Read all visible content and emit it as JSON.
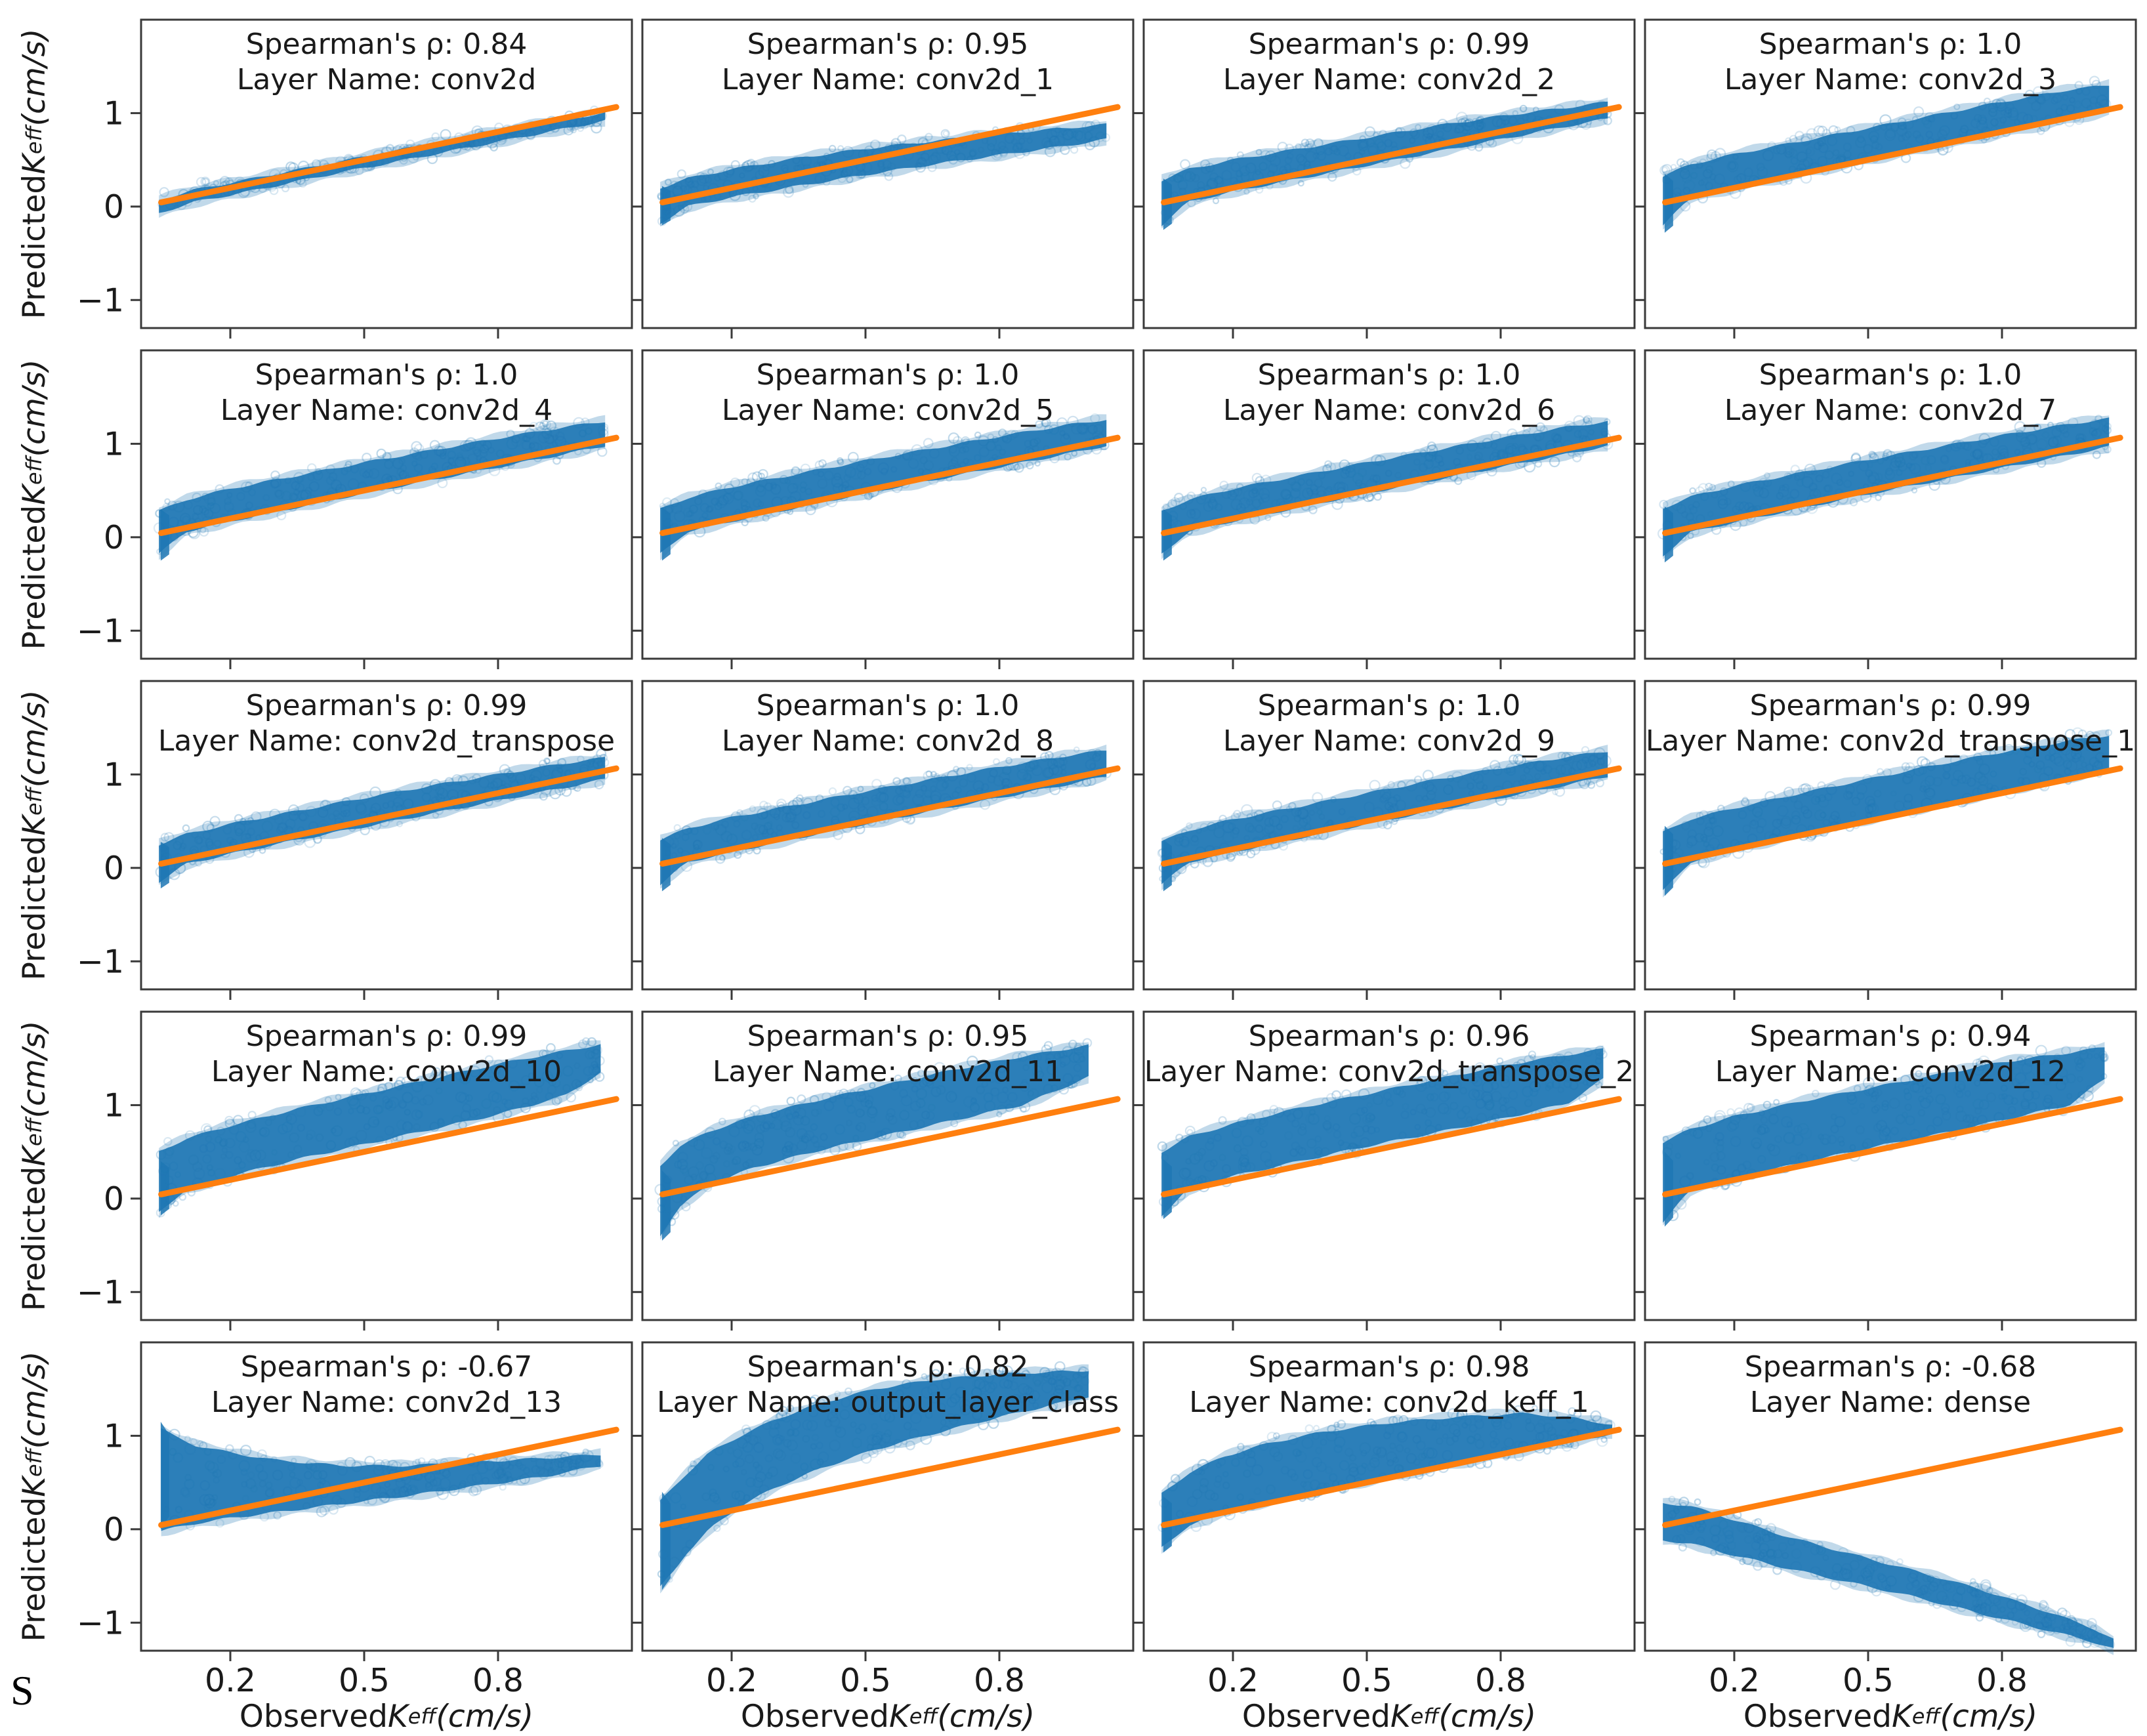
{
  "figure": {
    "caption_letter": "S",
    "colors": {
      "scatter": "#1f77b4",
      "line": "#ff7f0e",
      "axis": "#3a3a3a",
      "text": "#1a1a1a"
    },
    "title_template": {
      "rho_prefix": "Spearman's ρ: ",
      "layer_prefix": "Layer Name: "
    },
    "axes": {
      "xlabel": {
        "prefix": "Observed ",
        "symbol": "K",
        "subscript": "eff",
        "unit": "(cm/s)"
      },
      "ylabel": {
        "prefix": "Predicted ",
        "symbol": "K",
        "subscript": "eff",
        "unit": "(cm/s)"
      },
      "x_ticks": [
        "0.2",
        "0.5",
        "0.8"
      ],
      "x_tick_values": [
        0.2,
        0.5,
        0.8
      ],
      "y_ticks": [
        "1",
        "0",
        "−1"
      ],
      "y_tick_values": [
        1,
        0,
        -1
      ],
      "x_range": [
        0.0,
        1.1
      ],
      "y_range": [
        -1.3,
        2.0
      ],
      "grid": false,
      "legend": false,
      "identity_line": {
        "x1": 0.045,
        "y1": 0.045,
        "x2": 1.065,
        "y2": 1.065
      }
    }
  },
  "chart_data": [
    {
      "type": "scatter",
      "rho": "0.84",
      "layer": "conv2d",
      "spike": null,
      "band": [
        [
          0.04,
          -0.07,
          0.07
        ],
        [
          0.12,
          0.05,
          0.18
        ],
        [
          0.25,
          0.17,
          0.3
        ],
        [
          0.4,
          0.32,
          0.44
        ],
        [
          0.55,
          0.46,
          0.58
        ],
        [
          0.7,
          0.6,
          0.72
        ],
        [
          0.85,
          0.74,
          0.85
        ],
        [
          1.0,
          0.88,
          0.97
        ],
        [
          1.04,
          0.92,
          1.0
        ]
      ]
    },
    {
      "type": "scatter",
      "rho": "0.95",
      "layer": "conv2d_1",
      "spike": [
        -0.2,
        0.22
      ],
      "band": [
        [
          0.04,
          -0.18,
          0.2
        ],
        [
          0.1,
          0.0,
          0.3
        ],
        [
          0.2,
          0.1,
          0.4
        ],
        [
          0.35,
          0.22,
          0.52
        ],
        [
          0.5,
          0.34,
          0.62
        ],
        [
          0.65,
          0.45,
          0.7
        ],
        [
          0.8,
          0.55,
          0.78
        ],
        [
          0.95,
          0.65,
          0.84
        ],
        [
          1.04,
          0.72,
          0.88
        ]
      ]
    },
    {
      "type": "scatter",
      "rho": "0.99",
      "layer": "conv2d_2",
      "spike": [
        -0.25,
        0.3
      ],
      "band": [
        [
          0.04,
          -0.2,
          0.28
        ],
        [
          0.1,
          0.05,
          0.4
        ],
        [
          0.2,
          0.16,
          0.5
        ],
        [
          0.35,
          0.3,
          0.62
        ],
        [
          0.5,
          0.44,
          0.74
        ],
        [
          0.65,
          0.58,
          0.86
        ],
        [
          0.8,
          0.72,
          0.97
        ],
        [
          0.95,
          0.86,
          1.06
        ],
        [
          1.04,
          0.94,
          1.12
        ]
      ]
    },
    {
      "type": "scatter",
      "rho": "1.0",
      "layer": "conv2d_3",
      "spike": [
        -0.28,
        0.35
      ],
      "band": [
        [
          0.04,
          -0.2,
          0.32
        ],
        [
          0.1,
          0.08,
          0.45
        ],
        [
          0.2,
          0.2,
          0.56
        ],
        [
          0.35,
          0.35,
          0.7
        ],
        [
          0.5,
          0.5,
          0.84
        ],
        [
          0.65,
          0.64,
          0.98
        ],
        [
          0.8,
          0.78,
          1.12
        ],
        [
          0.95,
          0.93,
          1.25
        ],
        [
          1.04,
          1.02,
          1.3
        ]
      ]
    },
    {
      "type": "scatter",
      "rho": "1.0",
      "layer": "conv2d_4",
      "spike": [
        -0.25,
        0.3
      ],
      "band": [
        [
          0.04,
          -0.18,
          0.28
        ],
        [
          0.1,
          0.06,
          0.4
        ],
        [
          0.2,
          0.17,
          0.52
        ],
        [
          0.35,
          0.32,
          0.66
        ],
        [
          0.5,
          0.47,
          0.8
        ],
        [
          0.65,
          0.61,
          0.93
        ],
        [
          0.8,
          0.75,
          1.06
        ],
        [
          0.95,
          0.89,
          1.18
        ],
        [
          1.04,
          0.98,
          1.24
        ]
      ]
    },
    {
      "type": "scatter",
      "rho": "1.0",
      "layer": "conv2d_5",
      "spike": [
        -0.25,
        0.32
      ],
      "band": [
        [
          0.04,
          -0.18,
          0.3
        ],
        [
          0.1,
          0.06,
          0.42
        ],
        [
          0.2,
          0.17,
          0.54
        ],
        [
          0.35,
          0.32,
          0.68
        ],
        [
          0.5,
          0.47,
          0.82
        ],
        [
          0.65,
          0.61,
          0.95
        ],
        [
          0.8,
          0.75,
          1.08
        ],
        [
          0.95,
          0.89,
          1.2
        ],
        [
          1.04,
          0.98,
          1.26
        ]
      ]
    },
    {
      "type": "scatter",
      "rho": "1.0",
      "layer": "conv2d_6",
      "spike": [
        -0.25,
        0.3
      ],
      "band": [
        [
          0.04,
          -0.18,
          0.28
        ],
        [
          0.1,
          0.06,
          0.4
        ],
        [
          0.2,
          0.17,
          0.52
        ],
        [
          0.35,
          0.32,
          0.66
        ],
        [
          0.5,
          0.47,
          0.8
        ],
        [
          0.65,
          0.61,
          0.93
        ],
        [
          0.8,
          0.75,
          1.06
        ],
        [
          0.95,
          0.89,
          1.18
        ],
        [
          1.04,
          0.98,
          1.24
        ]
      ]
    },
    {
      "type": "scatter",
      "rho": "1.0",
      "layer": "conv2d_7",
      "spike": [
        -0.27,
        0.33
      ],
      "band": [
        [
          0.04,
          -0.2,
          0.31
        ],
        [
          0.1,
          0.05,
          0.43
        ],
        [
          0.2,
          0.16,
          0.55
        ],
        [
          0.35,
          0.31,
          0.69
        ],
        [
          0.5,
          0.46,
          0.83
        ],
        [
          0.65,
          0.6,
          0.96
        ],
        [
          0.8,
          0.74,
          1.09
        ],
        [
          0.95,
          0.88,
          1.21
        ],
        [
          1.04,
          0.97,
          1.27
        ]
      ]
    },
    {
      "type": "scatter",
      "rho": "0.99",
      "layer": "conv2d_transpose",
      "spike": [
        -0.22,
        0.28
      ],
      "band": [
        [
          0.04,
          -0.15,
          0.25
        ],
        [
          0.1,
          0.04,
          0.36
        ],
        [
          0.2,
          0.15,
          0.47
        ],
        [
          0.35,
          0.3,
          0.61
        ],
        [
          0.5,
          0.44,
          0.75
        ],
        [
          0.65,
          0.58,
          0.88
        ],
        [
          0.8,
          0.72,
          1.0
        ],
        [
          0.95,
          0.86,
          1.12
        ],
        [
          1.04,
          0.95,
          1.18
        ]
      ]
    },
    {
      "type": "scatter",
      "rho": "1.0",
      "layer": "conv2d_8",
      "spike": [
        -0.25,
        0.32
      ],
      "band": [
        [
          0.04,
          -0.18,
          0.3
        ],
        [
          0.1,
          0.06,
          0.42
        ],
        [
          0.2,
          0.17,
          0.54
        ],
        [
          0.35,
          0.32,
          0.68
        ],
        [
          0.5,
          0.47,
          0.82
        ],
        [
          0.65,
          0.61,
          0.95
        ],
        [
          0.8,
          0.75,
          1.08
        ],
        [
          0.95,
          0.89,
          1.2
        ],
        [
          1.04,
          0.98,
          1.26
        ]
      ]
    },
    {
      "type": "scatter",
      "rho": "1.0",
      "layer": "conv2d_9",
      "spike": [
        -0.25,
        0.3
      ],
      "band": [
        [
          0.04,
          -0.18,
          0.28
        ],
        [
          0.1,
          0.06,
          0.4
        ],
        [
          0.2,
          0.17,
          0.52
        ],
        [
          0.35,
          0.32,
          0.66
        ],
        [
          0.5,
          0.47,
          0.8
        ],
        [
          0.65,
          0.61,
          0.94
        ],
        [
          0.8,
          0.75,
          1.07
        ],
        [
          0.95,
          0.89,
          1.19
        ],
        [
          1.04,
          0.98,
          1.25
        ]
      ]
    },
    {
      "type": "scatter",
      "rho": "0.99",
      "layer": "conv2d_transpose_1",
      "spike": [
        -0.3,
        0.45
      ],
      "band": [
        [
          0.04,
          -0.25,
          0.38
        ],
        [
          0.1,
          0.06,
          0.52
        ],
        [
          0.2,
          0.2,
          0.64
        ],
        [
          0.35,
          0.36,
          0.8
        ],
        [
          0.5,
          0.52,
          0.95
        ],
        [
          0.65,
          0.67,
          1.1
        ],
        [
          0.8,
          0.82,
          1.24
        ],
        [
          0.95,
          0.97,
          1.36
        ],
        [
          1.04,
          1.06,
          1.42
        ]
      ]
    },
    {
      "type": "scatter",
      "rho": "0.99",
      "layer": "conv2d_10",
      "spike": [
        -0.18,
        0.4
      ],
      "band": [
        [
          0.04,
          -0.15,
          0.5
        ],
        [
          0.1,
          0.1,
          0.64
        ],
        [
          0.2,
          0.24,
          0.78
        ],
        [
          0.35,
          0.42,
          0.96
        ],
        [
          0.5,
          0.58,
          1.12
        ],
        [
          0.65,
          0.74,
          1.28
        ],
        [
          0.8,
          0.9,
          1.44
        ],
        [
          0.95,
          1.1,
          1.58
        ],
        [
          1.03,
          1.35,
          1.65
        ]
      ]
    },
    {
      "type": "scatter",
      "rho": "0.95",
      "layer": "conv2d_11",
      "spike": [
        -0.45,
        0.3
      ],
      "band": [
        [
          0.04,
          -0.4,
          0.35
        ],
        [
          0.08,
          -0.1,
          0.55
        ],
        [
          0.15,
          0.15,
          0.72
        ],
        [
          0.25,
          0.33,
          0.88
        ],
        [
          0.4,
          0.52,
          1.06
        ],
        [
          0.55,
          0.68,
          1.22
        ],
        [
          0.7,
          0.84,
          1.38
        ],
        [
          0.85,
          1.0,
          1.52
        ],
        [
          1.0,
          1.3,
          1.64
        ]
      ]
    },
    {
      "type": "scatter",
      "rho": "0.96",
      "layer": "conv2d_transpose_2",
      "spike": [
        -0.22,
        0.42
      ],
      "band": [
        [
          0.04,
          -0.18,
          0.5
        ],
        [
          0.1,
          0.1,
          0.66
        ],
        [
          0.2,
          0.24,
          0.8
        ],
        [
          0.35,
          0.4,
          0.97
        ],
        [
          0.5,
          0.56,
          1.12
        ],
        [
          0.65,
          0.7,
          1.27
        ],
        [
          0.8,
          0.85,
          1.42
        ],
        [
          0.95,
          1.02,
          1.54
        ],
        [
          1.03,
          1.28,
          1.6
        ]
      ]
    },
    {
      "type": "scatter",
      "rho": "0.94",
      "layer": "conv2d_12",
      "spike": [
        -0.3,
        0.5
      ],
      "band": [
        [
          0.04,
          -0.25,
          0.6
        ],
        [
          0.1,
          0.08,
          0.74
        ],
        [
          0.2,
          0.22,
          0.88
        ],
        [
          0.35,
          0.38,
          1.04
        ],
        [
          0.5,
          0.54,
          1.18
        ],
        [
          0.65,
          0.68,
          1.32
        ],
        [
          0.8,
          0.84,
          1.46
        ],
        [
          0.95,
          1.0,
          1.56
        ],
        [
          1.03,
          1.28,
          1.62
        ]
      ]
    },
    {
      "type": "scatter",
      "rho": "-0.67",
      "layer": "conv2d_13",
      "spike": [
        0.0,
        1.15
      ],
      "band": [
        [
          0.045,
          -0.02,
          1.08
        ],
        [
          0.08,
          0.02,
          0.98
        ],
        [
          0.12,
          0.06,
          0.9
        ],
        [
          0.2,
          0.12,
          0.82
        ],
        [
          0.3,
          0.18,
          0.74
        ],
        [
          0.45,
          0.27,
          0.68
        ],
        [
          0.6,
          0.36,
          0.68
        ],
        [
          0.75,
          0.46,
          0.72
        ],
        [
          0.9,
          0.56,
          0.76
        ],
        [
          1.03,
          0.68,
          0.8
        ]
      ]
    },
    {
      "type": "scatter",
      "rho": "0.82",
      "layer": "output_layer_class",
      "spike": [
        -0.65,
        0.4
      ],
      "band": [
        [
          0.04,
          -0.62,
          0.3
        ],
        [
          0.07,
          -0.45,
          0.45
        ],
        [
          0.1,
          -0.25,
          0.6
        ],
        [
          0.15,
          0.0,
          0.82
        ],
        [
          0.22,
          0.25,
          1.0
        ],
        [
          0.3,
          0.45,
          1.18
        ],
        [
          0.4,
          0.65,
          1.35
        ],
        [
          0.52,
          0.85,
          1.5
        ],
        [
          0.65,
          1.02,
          1.6
        ],
        [
          0.8,
          1.2,
          1.66
        ],
        [
          1.0,
          1.42,
          1.7
        ]
      ]
    },
    {
      "type": "scatter",
      "rho": "0.98",
      "layer": "conv2d_keff_1",
      "spike": [
        -0.25,
        0.35
      ],
      "band": [
        [
          0.04,
          -0.2,
          0.38
        ],
        [
          0.1,
          0.04,
          0.6
        ],
        [
          0.18,
          0.18,
          0.78
        ],
        [
          0.28,
          0.3,
          0.92
        ],
        [
          0.4,
          0.42,
          1.04
        ],
        [
          0.55,
          0.56,
          1.14
        ],
        [
          0.7,
          0.7,
          1.2
        ],
        [
          0.85,
          0.84,
          1.24
        ],
        [
          0.95,
          0.93,
          1.2
        ],
        [
          1.05,
          1.02,
          1.12
        ]
      ]
    },
    {
      "type": "scatter",
      "rho": "-0.68",
      "layer": "dense",
      "spike": null,
      "band": [
        [
          0.04,
          -0.12,
          0.28
        ],
        [
          0.1,
          -0.15,
          0.25
        ],
        [
          0.2,
          -0.28,
          0.1
        ],
        [
          0.32,
          -0.42,
          -0.08
        ],
        [
          0.45,
          -0.56,
          -0.25
        ],
        [
          0.6,
          -0.72,
          -0.44
        ],
        [
          0.75,
          -0.9,
          -0.64
        ],
        [
          0.9,
          -1.08,
          -0.88
        ],
        [
          1.0,
          -1.2,
          -1.05
        ],
        [
          1.05,
          -1.28,
          -1.18
        ]
      ]
    }
  ]
}
